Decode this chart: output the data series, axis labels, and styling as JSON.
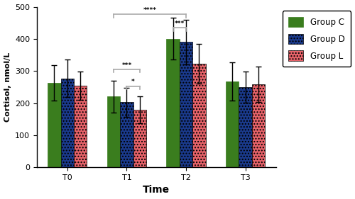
{
  "time_points": [
    "T0",
    "T1",
    "T2",
    "T3"
  ],
  "group_c_values": [
    263,
    220,
    400,
    268
  ],
  "group_d_values": [
    277,
    203,
    390,
    250
  ],
  "group_l_values": [
    254,
    180,
    322,
    258
  ],
  "group_c_errors": [
    55,
    50,
    65,
    60
  ],
  "group_d_errors": [
    58,
    45,
    70,
    48
  ],
  "group_l_errors": [
    45,
    42,
    62,
    55
  ],
  "group_c_color": "#3a7d1e",
  "group_d_color": "#1a3a8c",
  "group_l_color": "#e8636a",
  "ylabel": "Cortisol, nmol/L",
  "xlabel": "Time",
  "ylim": [
    0,
    500
  ],
  "yticks": [
    0,
    100,
    200,
    300,
    400,
    500
  ],
  "bar_width": 0.22,
  "legend_labels": [
    "Group C",
    "Group D",
    "Group L"
  ],
  "bracket_color": "#aaaaaa",
  "bracket_lw": 1.2
}
